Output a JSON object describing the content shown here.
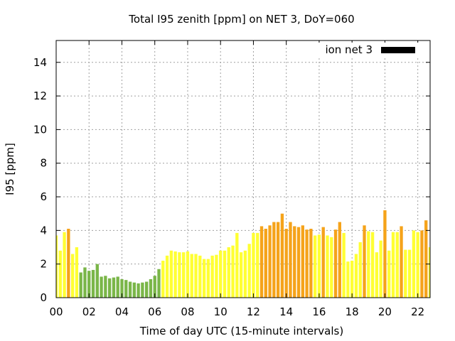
{
  "chart_data": {
    "type": "bar",
    "title": "Total I95 zenith [ppm] on NET 3, DoY=060",
    "xlabel": "Time of day UTC (15-minute intervals)",
    "ylabel": "I95 [ppm]",
    "legend": {
      "label": "ion net 3",
      "color": "#000000",
      "placement": "top-right"
    },
    "xlim": [
      0,
      22.75
    ],
    "ylim": [
      0,
      15.3
    ],
    "grid": true,
    "x_ticks": [
      {
        "value": 0,
        "label": "00"
      },
      {
        "value": 2,
        "label": "02"
      },
      {
        "value": 4,
        "label": "04"
      },
      {
        "value": 6,
        "label": "06"
      },
      {
        "value": 8,
        "label": "08"
      },
      {
        "value": 10,
        "label": "10"
      },
      {
        "value": 12,
        "label": "12"
      },
      {
        "value": 14,
        "label": "14"
      },
      {
        "value": 16,
        "label": "16"
      },
      {
        "value": 18,
        "label": "18"
      },
      {
        "value": 20,
        "label": "20"
      },
      {
        "value": 22,
        "label": "22"
      }
    ],
    "y_ticks": [
      {
        "value": 0,
        "label": "0"
      },
      {
        "value": 2,
        "label": "2"
      },
      {
        "value": 4,
        "label": "4"
      },
      {
        "value": 6,
        "label": "6"
      },
      {
        "value": 8,
        "label": "8"
      },
      {
        "value": 10,
        "label": "10"
      },
      {
        "value": 12,
        "label": "12"
      },
      {
        "value": 14,
        "label": "14"
      }
    ],
    "colors": {
      "low": "#7ab648",
      "mid": "#ffff33",
      "high": "#f5a31a"
    },
    "bars": [
      {
        "x": 0.0,
        "y": 3.7,
        "level": "mid"
      },
      {
        "x": 0.25,
        "y": 2.8,
        "level": "mid"
      },
      {
        "x": 0.5,
        "y": 3.9,
        "level": "mid"
      },
      {
        "x": 0.75,
        "y": 4.1,
        "level": "high"
      },
      {
        "x": 1.0,
        "y": 2.6,
        "level": "mid"
      },
      {
        "x": 1.25,
        "y": 3.0,
        "level": "mid"
      },
      {
        "x": 1.5,
        "y": 1.5,
        "level": "low"
      },
      {
        "x": 1.75,
        "y": 1.8,
        "level": "low"
      },
      {
        "x": 2.0,
        "y": 1.6,
        "level": "low"
      },
      {
        "x": 2.25,
        "y": 1.65,
        "level": "low"
      },
      {
        "x": 2.5,
        "y": 2.0,
        "level": "low"
      },
      {
        "x": 2.75,
        "y": 1.25,
        "level": "low"
      },
      {
        "x": 3.0,
        "y": 1.3,
        "level": "low"
      },
      {
        "x": 3.25,
        "y": 1.15,
        "level": "low"
      },
      {
        "x": 3.5,
        "y": 1.2,
        "level": "low"
      },
      {
        "x": 3.75,
        "y": 1.25,
        "level": "low"
      },
      {
        "x": 4.0,
        "y": 1.1,
        "level": "low"
      },
      {
        "x": 4.25,
        "y": 1.05,
        "level": "low"
      },
      {
        "x": 4.5,
        "y": 0.95,
        "level": "low"
      },
      {
        "x": 4.75,
        "y": 0.9,
        "level": "low"
      },
      {
        "x": 5.0,
        "y": 0.85,
        "level": "low"
      },
      {
        "x": 5.25,
        "y": 0.9,
        "level": "low"
      },
      {
        "x": 5.5,
        "y": 0.95,
        "level": "low"
      },
      {
        "x": 5.75,
        "y": 1.1,
        "level": "low"
      },
      {
        "x": 6.0,
        "y": 1.3,
        "level": "low"
      },
      {
        "x": 6.25,
        "y": 1.7,
        "level": "low"
      },
      {
        "x": 6.5,
        "y": 2.2,
        "level": "mid"
      },
      {
        "x": 6.75,
        "y": 2.5,
        "level": "mid"
      },
      {
        "x": 7.0,
        "y": 2.8,
        "level": "mid"
      },
      {
        "x": 7.25,
        "y": 2.75,
        "level": "mid"
      },
      {
        "x": 7.5,
        "y": 2.7,
        "level": "mid"
      },
      {
        "x": 7.75,
        "y": 2.7,
        "level": "mid"
      },
      {
        "x": 8.0,
        "y": 2.75,
        "level": "mid"
      },
      {
        "x": 8.25,
        "y": 2.6,
        "level": "mid"
      },
      {
        "x": 8.5,
        "y": 2.6,
        "level": "mid"
      },
      {
        "x": 8.75,
        "y": 2.5,
        "level": "mid"
      },
      {
        "x": 9.0,
        "y": 2.3,
        "level": "mid"
      },
      {
        "x": 9.25,
        "y": 2.3,
        "level": "mid"
      },
      {
        "x": 9.5,
        "y": 2.5,
        "level": "mid"
      },
      {
        "x": 9.75,
        "y": 2.55,
        "level": "mid"
      },
      {
        "x": 10.0,
        "y": 2.8,
        "level": "mid"
      },
      {
        "x": 10.25,
        "y": 2.8,
        "level": "mid"
      },
      {
        "x": 10.5,
        "y": 3.0,
        "level": "mid"
      },
      {
        "x": 10.75,
        "y": 3.1,
        "level": "mid"
      },
      {
        "x": 11.0,
        "y": 3.85,
        "level": "mid"
      },
      {
        "x": 11.25,
        "y": 2.7,
        "level": "mid"
      },
      {
        "x": 11.5,
        "y": 2.8,
        "level": "mid"
      },
      {
        "x": 11.75,
        "y": 3.2,
        "level": "mid"
      },
      {
        "x": 12.0,
        "y": 3.85,
        "level": "mid"
      },
      {
        "x": 12.25,
        "y": 3.85,
        "level": "mid"
      },
      {
        "x": 12.5,
        "y": 4.25,
        "level": "high"
      },
      {
        "x": 12.75,
        "y": 4.1,
        "level": "high"
      },
      {
        "x": 13.0,
        "y": 4.3,
        "level": "high"
      },
      {
        "x": 13.25,
        "y": 4.5,
        "level": "high"
      },
      {
        "x": 13.5,
        "y": 4.5,
        "level": "high"
      },
      {
        "x": 13.75,
        "y": 5.0,
        "level": "high"
      },
      {
        "x": 14.0,
        "y": 4.1,
        "level": "high"
      },
      {
        "x": 14.25,
        "y": 4.5,
        "level": "high"
      },
      {
        "x": 14.5,
        "y": 4.25,
        "level": "high"
      },
      {
        "x": 14.75,
        "y": 4.2,
        "level": "high"
      },
      {
        "x": 15.0,
        "y": 4.3,
        "level": "high"
      },
      {
        "x": 15.25,
        "y": 4.05,
        "level": "high"
      },
      {
        "x": 15.5,
        "y": 4.1,
        "level": "high"
      },
      {
        "x": 15.75,
        "y": 3.7,
        "level": "mid"
      },
      {
        "x": 16.0,
        "y": 3.75,
        "level": "mid"
      },
      {
        "x": 16.25,
        "y": 4.2,
        "level": "high"
      },
      {
        "x": 16.5,
        "y": 3.7,
        "level": "mid"
      },
      {
        "x": 16.75,
        "y": 3.6,
        "level": "mid"
      },
      {
        "x": 17.0,
        "y": 4.05,
        "level": "high"
      },
      {
        "x": 17.25,
        "y": 4.5,
        "level": "high"
      },
      {
        "x": 17.5,
        "y": 3.85,
        "level": "mid"
      },
      {
        "x": 17.75,
        "y": 2.15,
        "level": "mid"
      },
      {
        "x": 18.0,
        "y": 2.2,
        "level": "mid"
      },
      {
        "x": 18.25,
        "y": 2.6,
        "level": "mid"
      },
      {
        "x": 18.5,
        "y": 3.3,
        "level": "mid"
      },
      {
        "x": 18.75,
        "y": 4.3,
        "level": "high"
      },
      {
        "x": 19.0,
        "y": 3.95,
        "level": "mid"
      },
      {
        "x": 19.25,
        "y": 3.9,
        "level": "mid"
      },
      {
        "x": 19.5,
        "y": 2.7,
        "level": "mid"
      },
      {
        "x": 19.75,
        "y": 3.4,
        "level": "mid"
      },
      {
        "x": 20.0,
        "y": 5.2,
        "level": "high"
      },
      {
        "x": 20.25,
        "y": 2.8,
        "level": "mid"
      },
      {
        "x": 20.5,
        "y": 3.9,
        "level": "mid"
      },
      {
        "x": 20.75,
        "y": 3.9,
        "level": "mid"
      },
      {
        "x": 21.0,
        "y": 4.25,
        "level": "high"
      },
      {
        "x": 21.25,
        "y": 2.85,
        "level": "mid"
      },
      {
        "x": 21.5,
        "y": 2.85,
        "level": "mid"
      },
      {
        "x": 21.75,
        "y": 4.0,
        "level": "mid"
      },
      {
        "x": 22.0,
        "y": 3.9,
        "level": "mid"
      },
      {
        "x": 22.25,
        "y": 4.0,
        "level": "high"
      },
      {
        "x": 22.5,
        "y": 4.6,
        "level": "high"
      },
      {
        "x": 22.75,
        "y": 3.0,
        "level": "mid"
      }
    ]
  }
}
